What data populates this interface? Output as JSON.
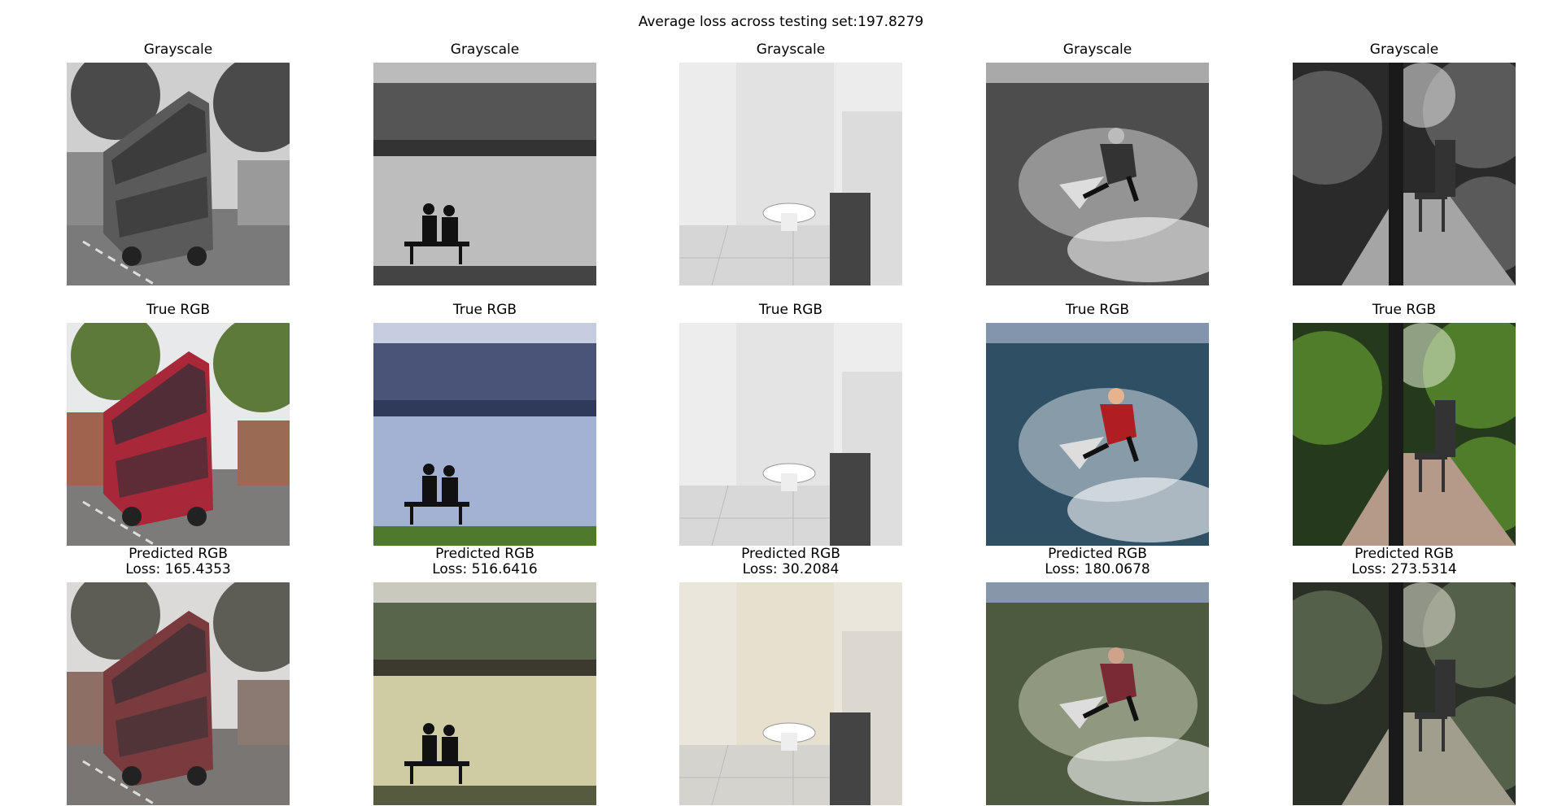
{
  "suptitle": "Average loss across testing set:197.8279",
  "rows": [
    {
      "name": "grayscale",
      "titles": [
        "Grayscale",
        "Grayscale",
        "Grayscale",
        "Grayscale",
        "Grayscale"
      ]
    },
    {
      "name": "true-rgb",
      "titles": [
        "True RGB",
        "True RGB",
        "True RGB",
        "True RGB",
        "True RGB"
      ]
    },
    {
      "name": "predicted-rgb",
      "titles": [
        "Predicted RGB",
        "Predicted RGB",
        "Predicted RGB",
        "Predicted RGB",
        "Predicted RGB"
      ],
      "losses": [
        "Loss: 165.4353",
        "Loss: 516.6416",
        "Loss: 30.2084",
        "Loss: 180.0678",
        "Loss: 273.5314"
      ]
    }
  ],
  "image_subjects": [
    "double-decker bus",
    "two people on bench by lake",
    "bathroom with toilet",
    "surfer on wave",
    "forest path with bench"
  ]
}
